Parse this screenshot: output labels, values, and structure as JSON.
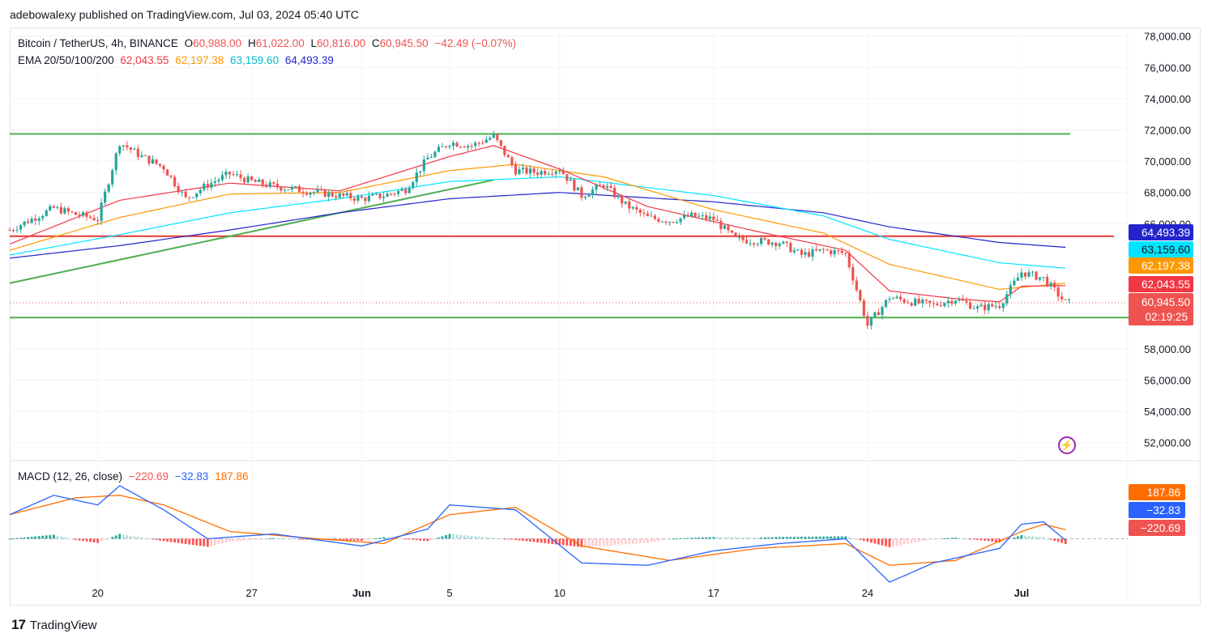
{
  "header": {
    "published_by": "adebowalexy published on TradingView.com, Jul 03, 2024 05:40 UTC"
  },
  "legend": {
    "symbol": "Bitcoin / TetherUS, 4h, BINANCE",
    "o_label": "O",
    "o": "60,988.00",
    "h_label": "H",
    "h": "61,022.00",
    "l_label": "L",
    "l": "60,816.00",
    "c_label": "C",
    "c": "60,945.50",
    "change": "−42.49 (−0.07%)",
    "ema_label": "EMA 20/50/100/200",
    "ema20": "62,043.55",
    "ema50": "62,197.38",
    "ema100": "63,159.60",
    "ema200": "64,493.39",
    "macd_label": "MACD (12, 26, close)",
    "macd_hist": "−220.69",
    "macd_line": "−32.83",
    "macd_signal": "187.86"
  },
  "footer": {
    "brand": "TradingView"
  },
  "colors": {
    "up": "#26a69a",
    "down": "#ef5350",
    "ema20": "#f23645",
    "ema50": "#ff9800",
    "ema100": "#00e5ff",
    "ema200": "#2424cc",
    "green_line": "#4caf50",
    "red_line": "#e53935",
    "macd": "#2962ff",
    "signal": "#ff6d00"
  },
  "chart_data": [
    {
      "type": "candlestick",
      "symbol": "Bitcoin / TetherUS",
      "interval": "4h",
      "exchange": "BINANCE",
      "y_axis": {
        "ticks": [
          "78,000.00",
          "76,000.00",
          "74,000.00",
          "72,000.00",
          "70,000.00",
          "68,000.00",
          "66,000.00",
          "58,000.00",
          "56,000.00",
          "54,000.00",
          "52,000.00"
        ],
        "tick_values": [
          78000,
          76000,
          74000,
          72000,
          70000,
          68000,
          66000,
          58000,
          56000,
          54000,
          52000
        ],
        "range": [
          51000,
          78500
        ]
      },
      "x_axis": {
        "ticks": [
          "20",
          "27",
          "Jun",
          "5",
          "10",
          "17",
          "24",
          "Jul"
        ]
      },
      "last_price": {
        "value": 60945.5,
        "label": "60,945.50",
        "countdown": "02:19:25"
      },
      "ema_labels": [
        {
          "value": 64493.39,
          "label": "64,493.39",
          "color": "#2424cc"
        },
        {
          "value": 63159.6,
          "label": "63,159.60",
          "color": "#00e5ff"
        },
        {
          "value": 62197.38,
          "label": "62,197.38",
          "color": "#ff9800"
        },
        {
          "value": 62043.55,
          "label": "62,043.55",
          "color": "#f23645"
        }
      ],
      "close_path": [
        [
          "May 16",
          65600
        ],
        [
          "May 17",
          66300
        ],
        [
          "May 18",
          67000
        ],
        [
          "May 19",
          66600
        ],
        [
          "May 20",
          66300
        ],
        [
          "May 21",
          71200
        ],
        [
          "May 22",
          70300
        ],
        [
          "May 23",
          69600
        ],
        [
          "May 24",
          67600
        ],
        [
          "May 25",
          68500
        ],
        [
          "May 26",
          69200
        ],
        [
          "May 27",
          68700
        ],
        [
          "May 28",
          68400
        ],
        [
          "May 29",
          68200
        ],
        [
          "May 30",
          68000
        ],
        [
          "May 31",
          67800
        ],
        [
          "Jun 1",
          67600
        ],
        [
          "Jun 2",
          67800
        ],
        [
          "Jun 3",
          68200
        ],
        [
          "Jun 4",
          70200
        ],
        [
          "Jun 5",
          71200
        ],
        [
          "Jun 6",
          71000
        ],
        [
          "Jun 7",
          71600
        ],
        [
          "Jun 8",
          69400
        ],
        [
          "Jun 9",
          69300
        ],
        [
          "Jun 10",
          69500
        ],
        [
          "Jun 11",
          67800
        ],
        [
          "Jun 12",
          68500
        ],
        [
          "Jun 13",
          67200
        ],
        [
          "Jun 14",
          66400
        ],
        [
          "Jun 15",
          66200
        ],
        [
          "Jun 16",
          66500
        ],
        [
          "Jun 17",
          66300
        ],
        [
          "Jun 18",
          65000
        ],
        [
          "Jun 19",
          64900
        ],
        [
          "Jun 20",
          64800
        ],
        [
          "Jun 21",
          64000
        ],
        [
          "Jun 22",
          64300
        ],
        [
          "Jun 23",
          64100
        ],
        [
          "Jun 24",
          59500
        ],
        [
          "Jun 25",
          61300
        ],
        [
          "Jun 26",
          61000
        ],
        [
          "Jun 27",
          60800
        ],
        [
          "Jun 28",
          61200
        ],
        [
          "Jun 29",
          60600
        ],
        [
          "Jun 30",
          60800
        ],
        [
          "Jul 1",
          62900
        ],
        [
          "Jul 2",
          62500
        ],
        [
          "Jul 3",
          60945
        ]
      ],
      "ema20": [
        [
          "May 16",
          64700
        ],
        [
          "May 21",
          67500
        ],
        [
          "May 26",
          68600
        ],
        [
          "May 31",
          68100
        ],
        [
          "Jun 5",
          70300
        ],
        [
          "Jun 7",
          71000
        ],
        [
          "Jun 10",
          69500
        ],
        [
          "Jun 14",
          67100
        ],
        [
          "Jun 19",
          65500
        ],
        [
          "Jun 23",
          64300
        ],
        [
          "Jun 25",
          61700
        ],
        [
          "Jun 28",
          61200
        ],
        [
          "Jun 30",
          61000
        ],
        [
          "Jul 1",
          62000
        ],
        [
          "Jul 3",
          62043
        ]
      ],
      "ema50": [
        [
          "May 16",
          64300
        ],
        [
          "May 21",
          66400
        ],
        [
          "May 26",
          67900
        ],
        [
          "May 31",
          68000
        ],
        [
          "Jun 5",
          69400
        ],
        [
          "Jun 8",
          69800
        ],
        [
          "Jun 12",
          69000
        ],
        [
          "Jun 17",
          66900
        ],
        [
          "Jun 22",
          65400
        ],
        [
          "Jun 25",
          63400
        ],
        [
          "Jun 30",
          61800
        ],
        [
          "Jul 3",
          62197
        ]
      ],
      "ema100": [
        [
          "May 16",
          64000
        ],
        [
          "May 21",
          65300
        ],
        [
          "May 26",
          66700
        ],
        [
          "May 31",
          67600
        ],
        [
          "Jun 5",
          68700
        ],
        [
          "Jun 10",
          69000
        ],
        [
          "Jun 17",
          67800
        ],
        [
          "Jun 22",
          66500
        ],
        [
          "Jun 25",
          65000
        ],
        [
          "Jun 30",
          63500
        ],
        [
          "Jul 3",
          63160
        ]
      ],
      "ema200": [
        [
          "May 16",
          63800
        ],
        [
          "May 21",
          64600
        ],
        [
          "May 26",
          65600
        ],
        [
          "May 31",
          66700
        ],
        [
          "Jun 5",
          67600
        ],
        [
          "Jun 10",
          68000
        ],
        [
          "Jun 17",
          67400
        ],
        [
          "Jun 22",
          66700
        ],
        [
          "Jun 25",
          65800
        ],
        [
          "Jun 30",
          64800
        ],
        [
          "Jul 3",
          64493
        ]
      ],
      "annotations": [
        {
          "kind": "green_horizontal",
          "y": 71750,
          "from": "May 16",
          "to": "Jul 1"
        },
        {
          "kind": "green_horizontal",
          "y": 60000,
          "from": "May 16",
          "to": "Jul 4"
        },
        {
          "kind": "red_horizontal",
          "y": 65200,
          "from": "May 16",
          "to": "Jul 3"
        },
        {
          "kind": "green_trendline",
          "start": [
            "May 16",
            62200
          ],
          "end": [
            "Jun 7",
            68800
          ]
        }
      ]
    },
    {
      "type": "macd",
      "params": "12, 26, close",
      "last": {
        "histogram": -220.69,
        "macd": -32.83,
        "signal": 187.86
      },
      "macd_line": [
        [
          "May 16",
          500
        ],
        [
          "May 18",
          900
        ],
        [
          "May 20",
          700
        ],
        [
          "May 21",
          1100
        ],
        [
          "May 23",
          600
        ],
        [
          "May 25",
          0
        ],
        [
          "May 28",
          100
        ],
        [
          "Jun 1",
          -150
        ],
        [
          "Jun 4",
          200
        ],
        [
          "Jun 5",
          700
        ],
        [
          "Jun 8",
          600
        ],
        [
          "Jun 11",
          -500
        ],
        [
          "Jun 14",
          -550
        ],
        [
          "Jun 17",
          -250
        ],
        [
          "Jun 20",
          -100
        ],
        [
          "Jun 23",
          0
        ],
        [
          "Jun 25",
          -900
        ],
        [
          "Jun 27",
          -500
        ],
        [
          "Jun 30",
          -200
        ],
        [
          "Jul 1",
          300
        ],
        [
          "Jul 2",
          350
        ],
        [
          "Jul 3",
          -33
        ]
      ],
      "signal_line": [
        [
          "May 16",
          500
        ],
        [
          "May 19",
          850
        ],
        [
          "May 21",
          900
        ],
        [
          "May 23",
          700
        ],
        [
          "May 26",
          150
        ],
        [
          "May 30",
          0
        ],
        [
          "Jun 2",
          -100
        ],
        [
          "Jun 5",
          500
        ],
        [
          "Jun 8",
          650
        ],
        [
          "Jun 11",
          -150
        ],
        [
          "Jun 15",
          -450
        ],
        [
          "Jun 19",
          -200
        ],
        [
          "Jun 23",
          -100
        ],
        [
          "Jun 25",
          -550
        ],
        [
          "Jun 28",
          -450
        ],
        [
          "Jul 1",
          150
        ],
        [
          "Jul 2",
          300
        ],
        [
          "Jul 3",
          188
        ]
      ]
    }
  ]
}
